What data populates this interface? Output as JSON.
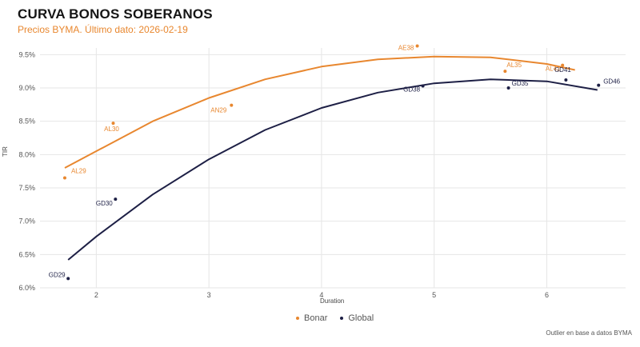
{
  "chart_data": {
    "type": "scatter",
    "title": "CURVA BONOS SOBERANOS",
    "subtitle": "Precios BYMA. Último dato: 2026-02-19",
    "xlabel": "Duration",
    "ylabel": "TIR",
    "xlim": [
      1.5,
      6.7
    ],
    "ylim": [
      6.0,
      9.6
    ],
    "x_ticks": [
      2,
      3,
      4,
      5,
      6
    ],
    "y_ticks": [
      6.0,
      6.5,
      7.0,
      7.5,
      8.0,
      8.5,
      9.0,
      9.5
    ],
    "y_tick_labels": [
      "6.0%",
      "6.5%",
      "7.0%",
      "7.5%",
      "8.0%",
      "8.5%",
      "9.0%",
      "9.5%"
    ],
    "grid": true,
    "legend_position": "bottom-center",
    "note": "Outlier en base a datos BYMA",
    "series": [
      {
        "name": "Bonar",
        "color": "#e8872f",
        "points": [
          {
            "label": "AL29",
            "x": 1.72,
            "y": 7.65
          },
          {
            "label": "AL30",
            "x": 2.15,
            "y": 8.47
          },
          {
            "label": "AN29",
            "x": 3.2,
            "y": 8.74
          },
          {
            "label": "AE38",
            "x": 4.85,
            "y": 9.63
          },
          {
            "label": "AL35",
            "x": 5.63,
            "y": 9.25
          },
          {
            "label": "AL41",
            "x": 6.14,
            "y": 9.34
          }
        ],
        "fit": [
          [
            1.72,
            7.8
          ],
          [
            2.5,
            8.5
          ],
          [
            3.0,
            8.85
          ],
          [
            3.5,
            9.13
          ],
          [
            4.0,
            9.32
          ],
          [
            4.5,
            9.43
          ],
          [
            5.0,
            9.47
          ],
          [
            5.5,
            9.46
          ],
          [
            6.0,
            9.36
          ],
          [
            6.25,
            9.27
          ]
        ]
      },
      {
        "name": "Global",
        "color": "#1d1f45",
        "points": [
          {
            "label": "GD29",
            "x": 1.75,
            "y": 6.14
          },
          {
            "label": "GD30",
            "x": 2.17,
            "y": 7.33
          },
          {
            "label": "GD38",
            "x": 4.9,
            "y": 9.03
          },
          {
            "label": "GD35",
            "x": 5.66,
            "y": 9.0
          },
          {
            "label": "GD41",
            "x": 6.17,
            "y": 9.12
          },
          {
            "label": "GD46",
            "x": 6.46,
            "y": 9.04
          }
        ],
        "fit": [
          [
            1.75,
            6.42
          ],
          [
            2.0,
            6.77
          ],
          [
            2.5,
            7.4
          ],
          [
            3.0,
            7.93
          ],
          [
            3.5,
            8.37
          ],
          [
            4.0,
            8.7
          ],
          [
            4.5,
            8.93
          ],
          [
            5.0,
            9.07
          ],
          [
            5.5,
            9.13
          ],
          [
            6.0,
            9.1
          ],
          [
            6.45,
            8.97
          ]
        ]
      }
    ]
  }
}
